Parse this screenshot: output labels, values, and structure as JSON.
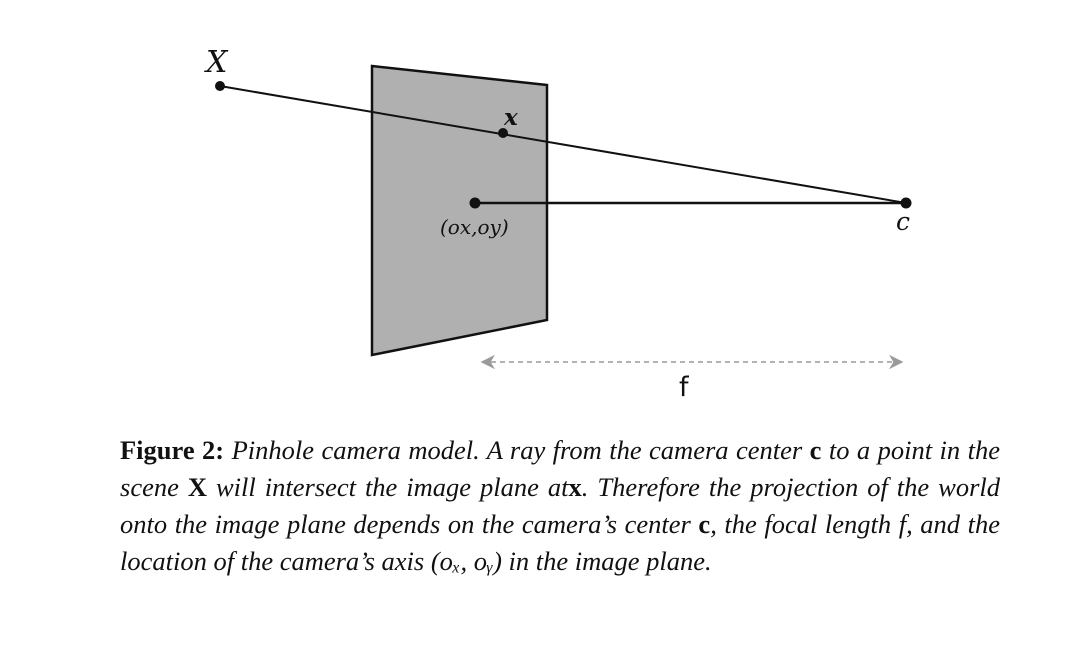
{
  "figure": {
    "label_X": "X",
    "label_x": "x",
    "label_c": "c",
    "label_principal": "(ox,oy)",
    "label_f": "f",
    "plane_color": "#b0b0b0"
  },
  "caption": {
    "label": "Figure 2:",
    "s1": "Pinhole camera model.  A ray from the camera center",
    "c1": "c",
    "s2": "to a point in the scene",
    "X": "X",
    "s3": "will intersect the image plane at",
    "x": "x",
    "s4": ". Therefore the projection of the world onto the image plane depends on the camera’s center",
    "c2": "c",
    "s5": ", the focal length",
    "f": "f",
    "s6": ", and the location of the camera’s axis",
    "axis": "(oₓ, oᵧ)",
    "s7": "in the image plane."
  }
}
